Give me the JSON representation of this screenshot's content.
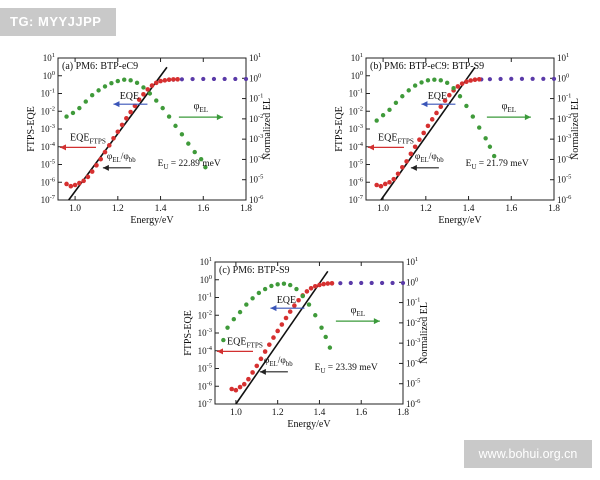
{
  "watermarks": {
    "top_left": "TG: MYYJJPP",
    "bottom_right": "www.bohui.org.cn"
  },
  "colors": {
    "eqe": "#3f9a3a",
    "ftps": "#d63030",
    "el": "#5a3aa8",
    "fit_line": "#111111",
    "arrow_eqe": "#3a55b8",
    "arrow_ftps": "#d23030",
    "arrow_phi_el_bb": "#222222",
    "arrow_el": "#3a9a3a"
  },
  "chart_data": [
    {
      "type": "scatter",
      "title": "(a) PM6: BTP-eC9",
      "xlabel": "Energy/eV",
      "ylabel": "FTPS-EQE",
      "y2label": "Normalized EL",
      "xlim": [
        0.92,
        1.8
      ],
      "ylim": [
        1e-07,
        10
      ],
      "y2lim": [
        1e-06,
        10
      ],
      "yscale": "log",
      "xticks": [
        "1.0",
        "1.2",
        "1.4",
        "1.6",
        "1.8"
      ],
      "yticks": [
        "10^-7",
        "10^-6",
        "10^-5",
        "10^-4",
        "10^-3",
        "10^-2",
        "10^-1",
        "10^0",
        "10^1"
      ],
      "y2ticks": [
        "10^-6",
        "10^-5",
        "10^-4",
        "10^-3",
        "10^-2",
        "10^-1",
        "10^0",
        "10^1"
      ],
      "annotation": "E_U = 22.89 meV",
      "labels": {
        "eqe": "EQE",
        "ftps": "EQE_FTPS",
        "phi_el_bb": "φ_EL/φ_bb",
        "phi_el": "φ_EL"
      },
      "series": [
        {
          "key": "eqe",
          "x": [
            0.96,
            0.99,
            1.02,
            1.05,
            1.08,
            1.11,
            1.14,
            1.17,
            1.2,
            1.23,
            1.26,
            1.29,
            1.32,
            1.35,
            1.38,
            1.41,
            1.44,
            1.47,
            1.5,
            1.53,
            1.56,
            1.59,
            1.61
          ],
          "y": [
            0.005,
            0.008,
            0.015,
            0.035,
            0.08,
            0.15,
            0.25,
            0.38,
            0.5,
            0.6,
            0.55,
            0.4,
            0.22,
            0.1,
            0.04,
            0.015,
            0.005,
            0.0015,
            0.0005,
            0.00015,
            5e-05,
            2e-05,
            7e-06
          ]
        },
        {
          "key": "ftps",
          "x": [
            0.96,
            0.98,
            1.0,
            1.02,
            1.04,
            1.06,
            1.08,
            1.1,
            1.12,
            1.14,
            1.16,
            1.18,
            1.2,
            1.22,
            1.24,
            1.26,
            1.28,
            1.3,
            1.32,
            1.34,
            1.36,
            1.38,
            1.4,
            1.42,
            1.44,
            1.46,
            1.48
          ],
          "y": [
            8e-07,
            6e-07,
            7e-07,
            9e-07,
            1.2e-06,
            2e-06,
            4e-06,
            9e-06,
            2e-05,
            5e-05,
            0.00012,
            0.0003,
            0.0007,
            0.0017,
            0.004,
            0.009,
            0.02,
            0.045,
            0.09,
            0.17,
            0.28,
            0.4,
            0.5,
            0.55,
            0.6,
            0.62,
            0.63
          ]
        },
        {
          "key": "el",
          "x": [
            1.46,
            1.5,
            1.55,
            1.6,
            1.65,
            1.7,
            1.75,
            1.8
          ],
          "y": [
            0.6,
            0.63,
            0.65,
            0.66,
            0.66,
            0.66,
            0.66,
            0.66
          ]
        },
        {
          "key": "fit",
          "x": [
            0.97,
            1.43
          ],
          "y": [
            1e-07,
            3
          ]
        }
      ]
    },
    {
      "type": "scatter",
      "title": "(b) PM6: BTP-eC9: BTP-S9",
      "xlabel": "Energy/eV",
      "ylabel": "FTPS-EQE",
      "y2label": "Normalized EL",
      "xlim": [
        0.92,
        1.8
      ],
      "ylim": [
        1e-07,
        10
      ],
      "y2lim": [
        1e-06,
        10
      ],
      "yscale": "log",
      "xticks": [
        "1.0",
        "1.2",
        "1.4",
        "1.6",
        "1.8"
      ],
      "yticks": [
        "10^-7",
        "10^-6",
        "10^-5",
        "10^-4",
        "10^-3",
        "10^-2",
        "10^-1",
        "10^0",
        "10^1"
      ],
      "y2ticks": [
        "10^-6",
        "10^-5",
        "10^-4",
        "10^-3",
        "10^-2",
        "10^-1",
        "10^0",
        "10^1"
      ],
      "annotation": "E_U = 21.79 meV",
      "labels": {
        "eqe": "EQE",
        "ftps": "EQE_FTPS",
        "phi_el_bb": "φ_EL/φ_bb",
        "phi_el": "φ_EL"
      },
      "series": [
        {
          "key": "eqe",
          "x": [
            0.97,
            1.0,
            1.03,
            1.06,
            1.09,
            1.12,
            1.15,
            1.18,
            1.21,
            1.24,
            1.27,
            1.3,
            1.33,
            1.36,
            1.39,
            1.42,
            1.45,
            1.48,
            1.5,
            1.52
          ],
          "y": [
            0.003,
            0.006,
            0.012,
            0.03,
            0.07,
            0.15,
            0.28,
            0.42,
            0.55,
            0.6,
            0.55,
            0.4,
            0.2,
            0.07,
            0.02,
            0.005,
            0.0012,
            0.0003,
            0.0001,
            3e-05
          ]
        },
        {
          "key": "ftps",
          "x": [
            0.97,
            0.99,
            1.01,
            1.03,
            1.05,
            1.07,
            1.09,
            1.11,
            1.13,
            1.15,
            1.17,
            1.19,
            1.21,
            1.23,
            1.25,
            1.27,
            1.29,
            1.31,
            1.33,
            1.35,
            1.37,
            1.39,
            1.41,
            1.43,
            1.45
          ],
          "y": [
            7e-07,
            6e-07,
            8e-07,
            1e-06,
            1.5e-06,
            3e-06,
            7e-06,
            1.5e-05,
            4e-05,
            0.0001,
            0.00025,
            0.0006,
            0.0015,
            0.0035,
            0.008,
            0.018,
            0.04,
            0.08,
            0.15,
            0.25,
            0.36,
            0.46,
            0.54,
            0.6,
            0.63
          ]
        },
        {
          "key": "el",
          "x": [
            1.46,
            1.5,
            1.55,
            1.6,
            1.65,
            1.7,
            1.75,
            1.8
          ],
          "y": [
            0.62,
            0.64,
            0.66,
            0.67,
            0.67,
            0.67,
            0.67,
            0.67
          ]
        },
        {
          "key": "fit",
          "x": [
            0.99,
            1.43
          ],
          "y": [
            1e-07,
            3
          ]
        }
      ]
    },
    {
      "type": "scatter",
      "title": "(c) PM6: BTP-S9",
      "xlabel": "Energy/eV",
      "ylabel": "FTPS-EQE",
      "y2label": "Normalized EL",
      "xlim": [
        0.9,
        1.8
      ],
      "ylim": [
        1e-07,
        10
      ],
      "y2lim": [
        1e-06,
        10
      ],
      "yscale": "log",
      "xticks": [
        "1.0",
        "1.2",
        "1.4",
        "1.6",
        "1.8"
      ],
      "yticks": [
        "10^-7",
        "10^-6",
        "10^-5",
        "10^-4",
        "10^-3",
        "10^-2",
        "10^-1",
        "10^0",
        "10^1"
      ],
      "y2ticks": [
        "10^-6",
        "10^-5",
        "10^-4",
        "10^-3",
        "10^-2",
        "10^-1",
        "10^0",
        "10^1"
      ],
      "annotation": "E_U = 23.39 meV",
      "labels": {
        "eqe": "EQE",
        "ftps": "EQE_FTPS",
        "phi_el_bb": "φ_EL/φ_bb",
        "phi_el": "φ_EL"
      },
      "series": [
        {
          "key": "eqe",
          "x": [
            0.94,
            0.96,
            0.99,
            1.02,
            1.05,
            1.08,
            1.11,
            1.14,
            1.17,
            1.2,
            1.23,
            1.26,
            1.29,
            1.32,
            1.35,
            1.38,
            1.41,
            1.43,
            1.45
          ],
          "y": [
            0.0004,
            0.002,
            0.006,
            0.015,
            0.04,
            0.09,
            0.18,
            0.3,
            0.45,
            0.55,
            0.6,
            0.5,
            0.3,
            0.12,
            0.04,
            0.01,
            0.002,
            0.0006,
            0.00015
          ]
        },
        {
          "key": "ftps",
          "x": [
            0.98,
            1.0,
            1.02,
            1.04,
            1.06,
            1.08,
            1.1,
            1.12,
            1.14,
            1.16,
            1.18,
            1.2,
            1.22,
            1.24,
            1.26,
            1.28,
            1.3,
            1.32,
            1.34,
            1.36,
            1.38,
            1.4,
            1.42,
            1.44,
            1.46
          ],
          "y": [
            7e-07,
            6e-07,
            9e-07,
            1.3e-06,
            2.5e-06,
            6e-06,
            1.4e-05,
            3.5e-05,
            9e-05,
            0.00022,
            0.00055,
            0.0013,
            0.003,
            0.007,
            0.016,
            0.035,
            0.07,
            0.13,
            0.22,
            0.33,
            0.43,
            0.51,
            0.57,
            0.61,
            0.63
          ]
        },
        {
          "key": "el",
          "x": [
            1.46,
            1.5,
            1.55,
            1.6,
            1.65,
            1.7,
            1.75,
            1.8
          ],
          "y": [
            0.62,
            0.64,
            0.66,
            0.66,
            0.66,
            0.66,
            0.66,
            0.66
          ]
        },
        {
          "key": "fit",
          "x": [
            1.0,
            1.44
          ],
          "y": [
            1e-07,
            3
          ]
        }
      ]
    }
  ]
}
